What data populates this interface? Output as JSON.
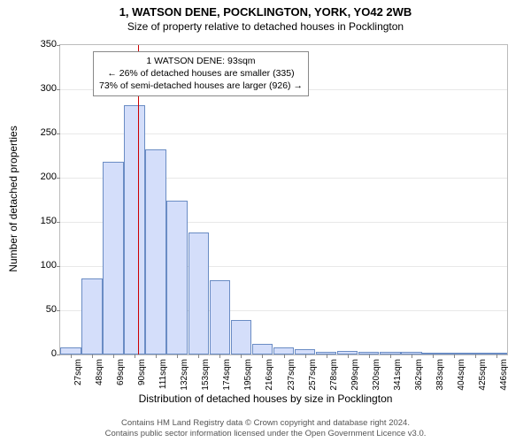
{
  "title_main": "1, WATSON DENE, POCKLINGTON, YORK, YO42 2WB",
  "title_sub": "Size of property relative to detached houses in Pocklington",
  "y_label": "Number of detached properties",
  "x_label": "Distribution of detached houses by size in Pocklington",
  "annotation": {
    "line1": "1 WATSON DENE: 93sqm",
    "line2": "← 26% of detached houses are smaller (335)",
    "line3": "73% of semi-detached houses are larger (926) →"
  },
  "footer": {
    "line1": "Contains HM Land Registry data © Crown copyright and database right 2024.",
    "line2": "Contains public sector information licensed under the Open Government Licence v3.0."
  },
  "chart": {
    "type": "bar",
    "bar_fill": "#d4defa",
    "bar_border": "#6a8cc4",
    "background_color": "#ffffff",
    "grid_color": "#e8e8e8",
    "marker_color": "#cc0000",
    "marker_x_value": 93,
    "ylim": [
      0,
      350
    ],
    "ytick_step": 50,
    "x_categories": [
      "27sqm",
      "48sqm",
      "69sqm",
      "90sqm",
      "111sqm",
      "132sqm",
      "153sqm",
      "174sqm",
      "195sqm",
      "216sqm",
      "237sqm",
      "257sqm",
      "278sqm",
      "299sqm",
      "320sqm",
      "341sqm",
      "362sqm",
      "383sqm",
      "404sqm",
      "425sqm",
      "446sqm"
    ],
    "values": [
      8,
      86,
      218,
      282,
      232,
      174,
      138,
      84,
      39,
      12,
      8,
      6,
      3,
      4,
      3,
      3,
      3,
      0,
      0,
      0,
      2
    ],
    "title_fontsize": 13,
    "subtitle_fontsize": 12,
    "label_fontsize": 12,
    "tick_fontsize": 11
  }
}
